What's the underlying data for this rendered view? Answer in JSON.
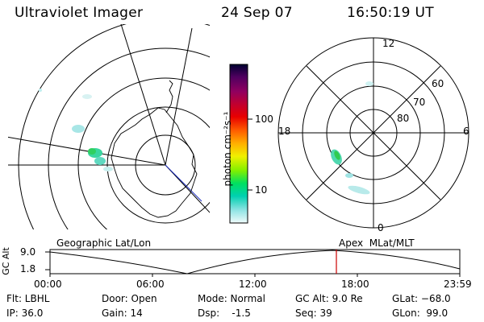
{
  "header": {
    "title": "Ultraviolet Imager",
    "date": "24 Sep 07",
    "time": "16:50:19 UT"
  },
  "colorbar": {
    "label": "photon cm⁻²s⁻¹",
    "ticks": [
      "100",
      "10"
    ],
    "colors": [
      "#000040",
      "#400060",
      "#80006a",
      "#b00040",
      "#d80000",
      "#ff4000",
      "#ff9a00",
      "#ffd700",
      "#d8ff00",
      "#60f000",
      "#00e070",
      "#00d0b0",
      "#80e0e0",
      "#d8f4f4"
    ]
  },
  "polar": {
    "lat_labels": [
      "60",
      "70",
      "80"
    ],
    "hour_labels": [
      "12",
      "18",
      "6",
      "0"
    ]
  },
  "coords": {
    "left": "Geographic Lat/Lon",
    "right": "Apex  MLat/MLT"
  },
  "altplot": {
    "ylabel": "GC Alt",
    "yticks": [
      "9.0",
      "1.8"
    ],
    "xticks": [
      "00:00",
      "06:00",
      "12:00",
      "18:00",
      "23:59"
    ],
    "marker_color": "#cc0000"
  },
  "info": {
    "filter": "Flt: LBHL",
    "ip": "IP: 36.0",
    "door": "Door: Open",
    "gain": "Gain: 14",
    "mode": "Mode: Normal",
    "dsp": "Dsp:    -1.5",
    "gcalt": "GC Alt: 9.0 Re",
    "seq": "Seq: 39",
    "glat": "GLat: −68.0",
    "glon": "GLon:  99.0"
  }
}
